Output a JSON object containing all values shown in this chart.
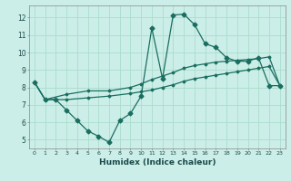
{
  "title": "",
  "xlabel": "Humidex (Indice chaleur)",
  "bg_color": "#cceee8",
  "grid_color": "#aaddcc",
  "line_color": "#1a6e60",
  "xlim": [
    -0.5,
    23.5
  ],
  "ylim": [
    4.5,
    12.7
  ],
  "xticks": [
    0,
    1,
    2,
    3,
    4,
    5,
    6,
    7,
    8,
    9,
    10,
    11,
    12,
    13,
    14,
    15,
    16,
    17,
    18,
    19,
    20,
    21,
    22,
    23
  ],
  "yticks": [
    5,
    6,
    7,
    8,
    9,
    10,
    11,
    12
  ],
  "line1_x": [
    0,
    1,
    2,
    3,
    4,
    5,
    6,
    7,
    8,
    9,
    10,
    11,
    12,
    13,
    14,
    15,
    16,
    17,
    18,
    19,
    20,
    21,
    22,
    23
  ],
  "line1_y": [
    8.3,
    7.3,
    7.3,
    6.7,
    6.1,
    5.5,
    5.2,
    4.85,
    6.1,
    6.5,
    7.5,
    11.4,
    8.5,
    12.15,
    12.2,
    11.6,
    10.5,
    10.3,
    9.7,
    9.5,
    9.5,
    9.7,
    8.1,
    8.1
  ],
  "line2_x": [
    0,
    1,
    3,
    5,
    7,
    9,
    10,
    11,
    12,
    13,
    14,
    15,
    16,
    17,
    18,
    19,
    20,
    21,
    22,
    23
  ],
  "line2_y": [
    8.3,
    7.3,
    7.6,
    7.8,
    7.8,
    8.0,
    8.2,
    8.45,
    8.65,
    8.85,
    9.1,
    9.25,
    9.35,
    9.45,
    9.5,
    9.55,
    9.6,
    9.65,
    9.75,
    8.1
  ],
  "line3_x": [
    0,
    1,
    3,
    5,
    7,
    9,
    10,
    11,
    12,
    13,
    14,
    15,
    16,
    17,
    18,
    19,
    20,
    21,
    22,
    23
  ],
  "line3_y": [
    8.3,
    7.3,
    7.3,
    7.4,
    7.5,
    7.65,
    7.75,
    7.85,
    8.0,
    8.15,
    8.35,
    8.5,
    8.6,
    8.7,
    8.8,
    8.9,
    9.0,
    9.1,
    9.2,
    8.1
  ]
}
